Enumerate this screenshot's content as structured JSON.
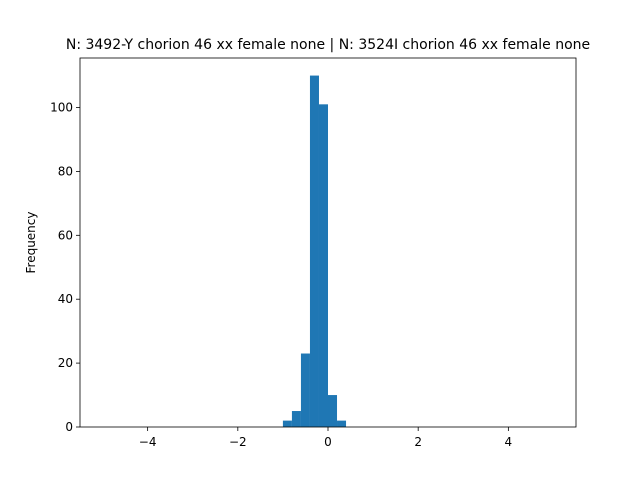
{
  "chart_data": {
    "type": "histogram",
    "title": "N: 3492-Y chorion 46 xx female none | N: 3524I chorion 46 xx female none",
    "y_label": "Frequency",
    "bins": [
      -1.0,
      -0.8,
      -0.6,
      -0.4,
      -0.2,
      0.0,
      0.2,
      0.4
    ],
    "values": [
      2,
      5,
      23,
      110,
      101,
      10,
      2
    ],
    "color": "#1f77b4",
    "xlim": [
      -5.5,
      5.5
    ],
    "xticks": [
      {
        "value": -4,
        "label": "−4"
      },
      {
        "value": -2,
        "label": "−2"
      },
      0,
      2,
      4
    ],
    "ylim": [
      0,
      115.5
    ],
    "yticks": [
      0,
      20,
      40,
      60,
      80,
      100
    ],
    "grid": false
  }
}
